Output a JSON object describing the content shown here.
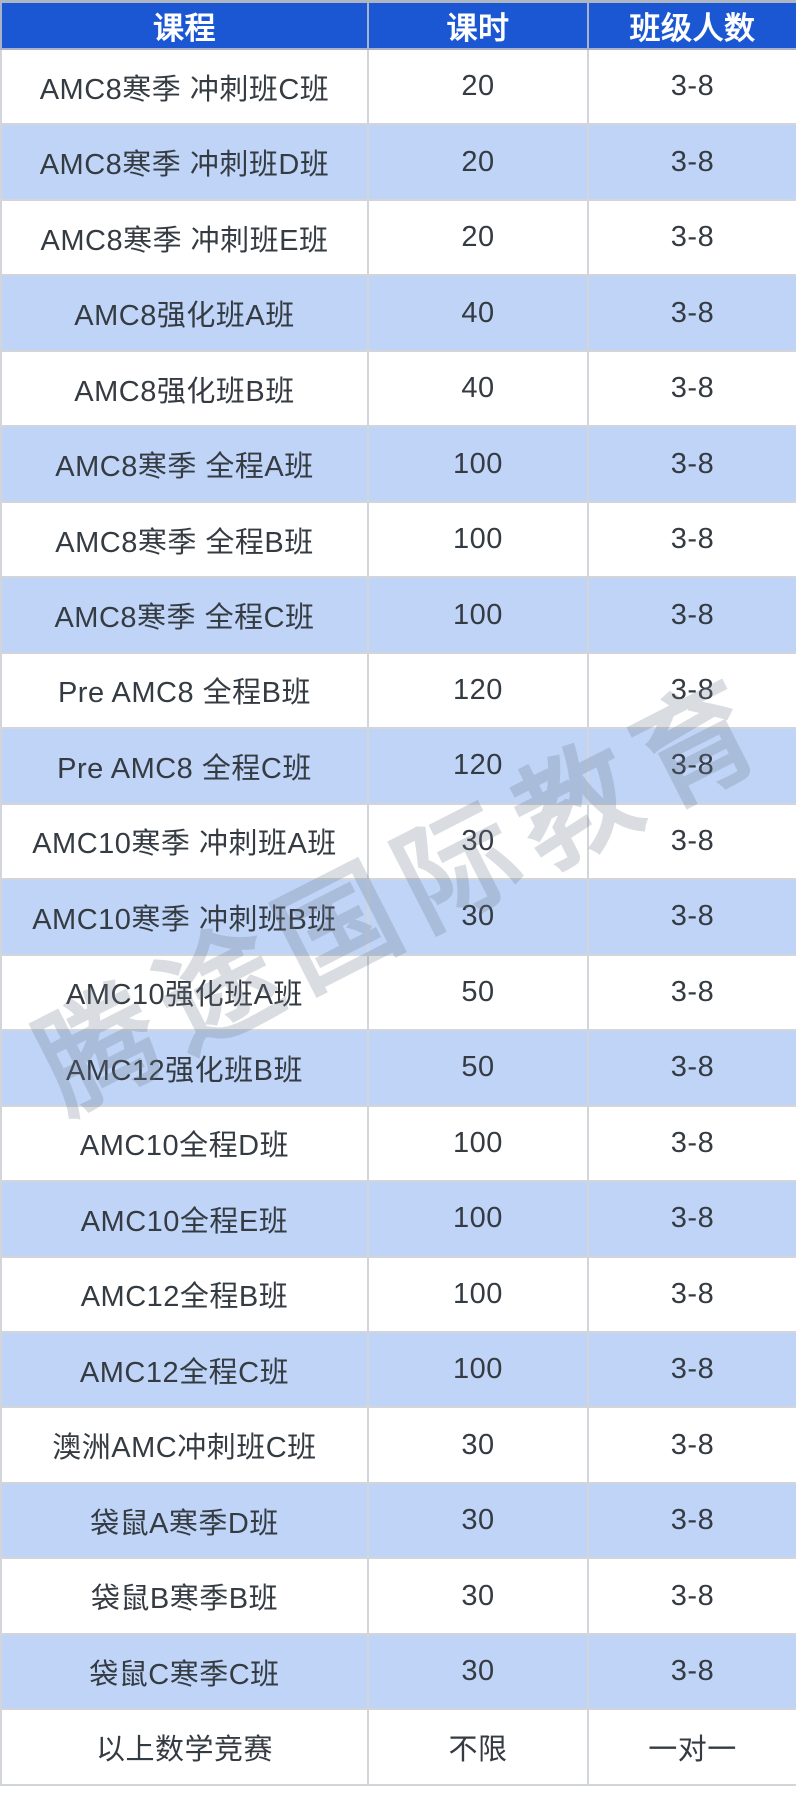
{
  "table": {
    "columns": [
      {
        "label": "课程"
      },
      {
        "label": "课时"
      },
      {
        "label": "班级人数"
      }
    ],
    "rows": [
      [
        "AMC8寒季 冲刺班C班",
        "20",
        "3-8"
      ],
      [
        "AMC8寒季 冲刺班D班",
        "20",
        "3-8"
      ],
      [
        "AMC8寒季 冲刺班E班",
        "20",
        "3-8"
      ],
      [
        "AMC8强化班A班",
        "40",
        "3-8"
      ],
      [
        "AMC8强化班B班",
        "40",
        "3-8"
      ],
      [
        "AMC8寒季 全程A班",
        "100",
        "3-8"
      ],
      [
        "AMC8寒季 全程B班",
        "100",
        "3-8"
      ],
      [
        "AMC8寒季 全程C班",
        "100",
        "3-8"
      ],
      [
        "Pre AMC8 全程B班",
        "120",
        "3-8"
      ],
      [
        "Pre AMC8 全程C班",
        "120",
        "3-8"
      ],
      [
        "AMC10寒季 冲刺班A班",
        "30",
        "3-8"
      ],
      [
        "AMC10寒季 冲刺班B班",
        "30",
        "3-8"
      ],
      [
        "AMC10强化班A班",
        "50",
        "3-8"
      ],
      [
        "AMC12强化班B班",
        "50",
        "3-8"
      ],
      [
        "AMC10全程D班",
        "100",
        "3-8"
      ],
      [
        "AMC10全程E班",
        "100",
        "3-8"
      ],
      [
        "AMC12全程B班",
        "100",
        "3-8"
      ],
      [
        "AMC12全程C班",
        "100",
        "3-8"
      ],
      [
        "澳洲AMC冲刺班C班",
        "30",
        "3-8"
      ],
      [
        "袋鼠A寒季D班",
        "30",
        "3-8"
      ],
      [
        "袋鼠B寒季B班",
        "30",
        "3-8"
      ],
      [
        "袋鼠C寒季C班",
        "30",
        "3-8"
      ],
      [
        "以上数学竞赛",
        "不限",
        "一对一"
      ]
    ]
  },
  "watermark": {
    "text": "腾途国际教育"
  },
  "colors": {
    "header_bg": "#1b57d3",
    "header_text": "#ffffff",
    "row_alt_bg": "#bfd4f6",
    "row_bg": "#ffffff",
    "cell_text": "#353b42",
    "grid_line": "#d2d6db",
    "watermark_text": "rgba(108,118,140,0.26)"
  }
}
